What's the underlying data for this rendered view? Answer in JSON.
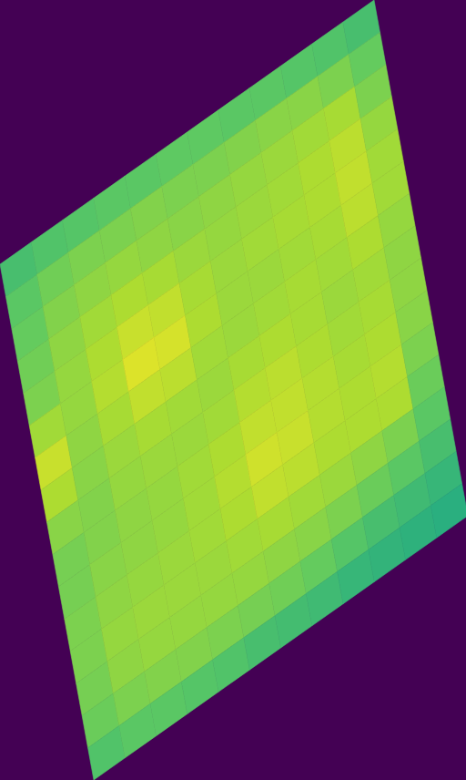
{
  "chart_data": {
    "type": "heatmap",
    "tick_labels": false,
    "color_range": [
      0,
      1
    ],
    "cells": [
      [
        0.7,
        0.72,
        0.73,
        0.74,
        0.74,
        0.75,
        0.75,
        0.74,
        0.74,
        0.73,
        0.72,
        0.7
      ],
      [
        0.74,
        0.78,
        0.8,
        0.8,
        0.81,
        0.8,
        0.8,
        0.81,
        0.82,
        0.82,
        0.8,
        0.76
      ],
      [
        0.76,
        0.81,
        0.83,
        0.84,
        0.83,
        0.82,
        0.83,
        0.84,
        0.85,
        0.86,
        0.87,
        0.8
      ],
      [
        0.78,
        0.83,
        0.86,
        0.88,
        0.87,
        0.85,
        0.84,
        0.85,
        0.86,
        0.88,
        0.9,
        0.84
      ],
      [
        0.8,
        0.84,
        0.88,
        0.92,
        0.91,
        0.87,
        0.85,
        0.86,
        0.87,
        0.88,
        0.91,
        0.86
      ],
      [
        0.86,
        0.84,
        0.89,
        0.95,
        0.94,
        0.88,
        0.85,
        0.85,
        0.86,
        0.87,
        0.9,
        0.86
      ],
      [
        0.92,
        0.83,
        0.87,
        0.91,
        0.9,
        0.86,
        0.85,
        0.86,
        0.87,
        0.86,
        0.88,
        0.84
      ],
      [
        0.88,
        0.82,
        0.85,
        0.87,
        0.86,
        0.85,
        0.87,
        0.88,
        0.87,
        0.85,
        0.86,
        0.83
      ],
      [
        0.82,
        0.81,
        0.84,
        0.85,
        0.85,
        0.86,
        0.89,
        0.9,
        0.88,
        0.86,
        0.87,
        0.83
      ],
      [
        0.79,
        0.81,
        0.83,
        0.84,
        0.86,
        0.88,
        0.91,
        0.91,
        0.89,
        0.87,
        0.88,
        0.82
      ],
      [
        0.79,
        0.82,
        0.83,
        0.84,
        0.86,
        0.89,
        0.93,
        0.92,
        0.89,
        0.88,
        0.89,
        0.8
      ],
      [
        0.8,
        0.83,
        0.84,
        0.85,
        0.86,
        0.88,
        0.91,
        0.9,
        0.88,
        0.88,
        0.88,
        0.77
      ],
      [
        0.8,
        0.84,
        0.85,
        0.85,
        0.85,
        0.86,
        0.87,
        0.86,
        0.85,
        0.83,
        0.8,
        0.74
      ],
      [
        0.79,
        0.83,
        0.84,
        0.84,
        0.84,
        0.84,
        0.83,
        0.82,
        0.8,
        0.77,
        0.74,
        0.7
      ],
      [
        0.77,
        0.8,
        0.81,
        0.81,
        0.8,
        0.79,
        0.78,
        0.76,
        0.73,
        0.7,
        0.68,
        0.66
      ],
      [
        0.72,
        0.74,
        0.74,
        0.73,
        0.72,
        0.7,
        0.69,
        0.68,
        0.66,
        0.65,
        0.64,
        0.63
      ]
    ]
  }
}
